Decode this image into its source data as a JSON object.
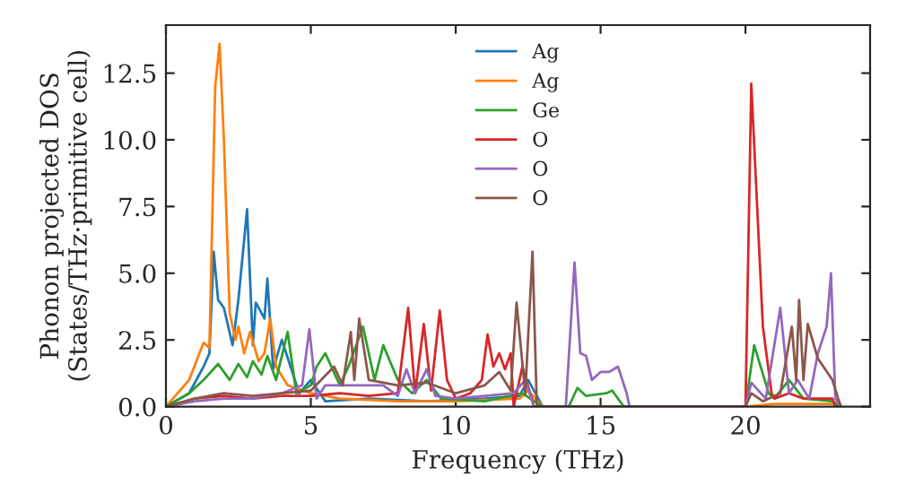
{
  "chart_data": {
    "type": "line",
    "xlabel": "Frequency (THz)",
    "ylabel": "Phonon projected DOS\n(States/THz·primitive cell)",
    "xlim": [
      0,
      24.3
    ],
    "ylim": [
      0,
      14.3
    ],
    "xticks": [
      0,
      5,
      10,
      15,
      20
    ],
    "yticks": [
      {
        "value": 0,
        "label": "0.0"
      },
      2.5,
      {
        "value": 5,
        "label": "5.0"
      },
      7.5,
      {
        "value": 10,
        "label": "10.0"
      },
      12.5
    ],
    "legend": "top",
    "grid": false,
    "marker": "none",
    "line_style": "solid",
    "series": [
      {
        "name": "Ag",
        "color": "#1f77b4",
        "x": [
          0,
          0.8,
          1.3,
          1.5,
          1.65,
          1.8,
          2.0,
          2.3,
          2.5,
          2.8,
          3.0,
          3.1,
          3.4,
          3.5,
          3.7,
          4.0,
          4.3,
          4.6,
          5.0,
          5.5,
          7,
          9,
          11,
          12.2,
          12.5,
          13.0
        ],
        "values": [
          0,
          0.5,
          1.5,
          2.0,
          5.8,
          4.0,
          3.7,
          2.3,
          4.0,
          7.4,
          2.3,
          3.9,
          3.3,
          4.8,
          1.4,
          2.5,
          1.5,
          0.5,
          1.0,
          0.2,
          0.3,
          0.2,
          0.3,
          0.4,
          1.0,
          0
        ]
      },
      {
        "name": "Ag",
        "color": "#ff7f0e",
        "x": [
          0,
          0.8,
          1.3,
          1.5,
          1.7,
          1.85,
          2.0,
          2.2,
          2.4,
          2.5,
          2.7,
          2.9,
          3.2,
          3.4,
          3.6,
          3.8,
          4.2,
          5.0,
          6,
          8,
          10,
          12.2,
          12.5,
          13.0,
          20.0,
          21.0,
          23.0,
          23.3
        ],
        "values": [
          0,
          1.0,
          2.4,
          2.2,
          12.0,
          13.6,
          10.0,
          3.5,
          2.5,
          3.0,
          2.0,
          2.8,
          1.7,
          2.0,
          3.3,
          1.5,
          0.8,
          0.5,
          0.3,
          0.2,
          0.2,
          0.3,
          0.6,
          0,
          0,
          0.1,
          0.1,
          0
        ]
      },
      {
        "name": "Ge",
        "color": "#2ca02c",
        "x": [
          0,
          0.8,
          1.3,
          1.8,
          2.2,
          2.5,
          2.8,
          3.0,
          3.3,
          3.5,
          3.8,
          4.2,
          4.5,
          5.0,
          5.2,
          5.5,
          6.0,
          6.3,
          6.8,
          7.2,
          7.5,
          8.0,
          8.5,
          9.0,
          9.5,
          11.0,
          12.3,
          13.0,
          13.9,
          14.2,
          14.5,
          15.2,
          15.4,
          15.8,
          20.0,
          20.3,
          20.8,
          21.0,
          21.5,
          22.0,
          23.0,
          23.3
        ],
        "values": [
          0,
          0.5,
          1.0,
          1.6,
          1.0,
          1.6,
          1.1,
          1.7,
          1.2,
          1.9,
          1.0,
          2.8,
          0.5,
          0.8,
          1.5,
          2.0,
          0.8,
          1.5,
          3.0,
          1.0,
          2.3,
          1.0,
          0.5,
          1.0,
          0.3,
          0.2,
          0.5,
          0,
          0,
          0.7,
          0.4,
          0.5,
          0.6,
          0,
          0,
          2.3,
          0.5,
          0.3,
          1.0,
          0.3,
          0.2,
          0
        ]
      },
      {
        "name": "O",
        "color": "#d62728",
        "x": [
          0,
          1.0,
          2.0,
          3.0,
          4.0,
          5.0,
          6.0,
          7.0,
          8.0,
          8.36,
          8.6,
          8.9,
          9.15,
          9.45,
          9.7,
          10.0,
          10.5,
          10.9,
          11.1,
          11.3,
          11.5,
          11.7,
          11.9,
          12.0,
          12.3,
          12.7,
          20.0,
          20.2,
          20.6,
          20.9,
          21.0,
          21.5,
          22.0,
          23.0,
          23.1
        ],
        "values": [
          0,
          0.3,
          0.4,
          0.3,
          0.4,
          0.4,
          0.5,
          0.4,
          0.5,
          3.7,
          0.5,
          3.1,
          0.6,
          3.6,
          1.0,
          0.3,
          0.5,
          1.0,
          2.7,
          1.5,
          2.0,
          1.4,
          2.0,
          0,
          1.5,
          0,
          0,
          12.1,
          3.0,
          0.5,
          0.3,
          0.5,
          0.3,
          0.3,
          0
        ]
      },
      {
        "name": "O",
        "color": "#9467bd",
        "x": [
          0,
          1.0,
          2.0,
          3.0,
          4.0,
          4.7,
          4.95,
          5.2,
          5.5,
          6.5,
          7.5,
          8.0,
          8.3,
          8.6,
          9.0,
          9.3,
          10.0,
          11.0,
          12.0,
          12.4,
          12.7,
          13.8,
          14.1,
          14.3,
          14.5,
          14.7,
          15.0,
          15.3,
          15.6,
          15.9,
          16.0,
          20.0,
          20.2,
          20.7,
          21.2,
          21.5,
          21.8,
          22.2,
          22.5,
          22.8,
          22.95,
          23.1,
          23.3
        ],
        "values": [
          0,
          0.2,
          0.3,
          0.3,
          0.5,
          0.8,
          2.9,
          0.3,
          0.8,
          0.8,
          0.8,
          0.4,
          1.4,
          0.5,
          1.4,
          0.4,
          0.3,
          0.4,
          0.5,
          1.0,
          0,
          0,
          5.4,
          2.0,
          1.9,
          1.0,
          1.3,
          1.3,
          1.5,
          0.5,
          0,
          0,
          0.9,
          0.3,
          3.7,
          0.5,
          1.0,
          0.3,
          2.0,
          3.0,
          5.0,
          0.3,
          0
        ]
      },
      {
        "name": "O",
        "color": "#8c564b",
        "x": [
          0,
          1.0,
          2.0,
          3.0,
          4.0,
          5.0,
          5.8,
          6.1,
          6.38,
          6.5,
          6.67,
          7.0,
          8.0,
          9.0,
          10.0,
          11.0,
          11.5,
          11.9,
          12.1,
          12.4,
          12.65,
          12.8,
          20.0,
          20.2,
          20.6,
          21.2,
          21.6,
          21.75,
          21.85,
          22.0,
          22.15,
          22.5,
          23.0,
          23.2,
          23.3
        ],
        "values": [
          0,
          0.3,
          0.5,
          0.4,
          0.5,
          0.6,
          1.5,
          0.8,
          2.8,
          1.0,
          3.3,
          1.0,
          0.8,
          0.9,
          0.5,
          0.8,
          1.3,
          0.6,
          3.9,
          0.5,
          5.8,
          0,
          0,
          0.5,
          0.2,
          0.5,
          3.0,
          1.0,
          4.0,
          1.0,
          3.1,
          1.8,
          1.0,
          0.3,
          0
        ]
      }
    ]
  }
}
